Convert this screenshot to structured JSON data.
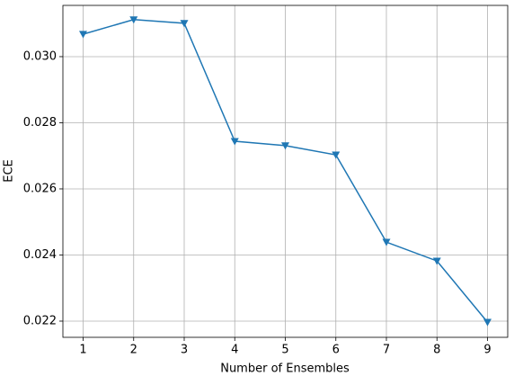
{
  "chart_data": {
    "type": "line",
    "x_label": "Number of Ensembles",
    "y_label": "ECE",
    "x": [
      1,
      2,
      3,
      4,
      5,
      6,
      7,
      8,
      9
    ],
    "values": [
      0.03068,
      0.03112,
      0.03101,
      0.02744,
      0.02731,
      0.02703,
      0.02439,
      0.02382,
      0.02197
    ],
    "color": "#1f77b4",
    "marker": "triangle-down",
    "xlim": [
      0.6,
      9.4
    ],
    "ylim": [
      0.02151,
      0.03155
    ],
    "xticks": [
      1,
      2,
      3,
      4,
      5,
      6,
      7,
      8,
      9
    ],
    "yticks": [
      {
        "value": 0.022,
        "label": "0.022"
      },
      {
        "value": 0.024,
        "label": "0.024"
      },
      {
        "value": 0.026,
        "label": "0.026"
      },
      {
        "value": 0.028,
        "label": "0.028"
      },
      {
        "value": 0.03,
        "label": "0.030"
      }
    ],
    "grid": true
  }
}
